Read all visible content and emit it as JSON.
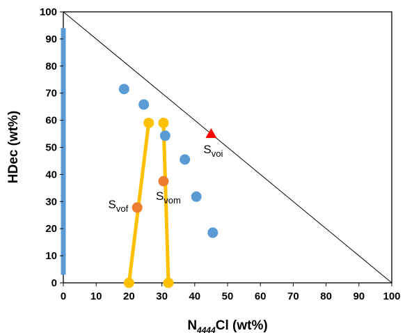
{
  "chart_data": {
    "type": "scatter",
    "x_label": {
      "main": "N",
      "sub": "4444",
      "rest": "Cl (wt%)"
    },
    "y_label": "HDec (wt%)",
    "xlim": [
      0,
      100
    ],
    "ylim": [
      0,
      100
    ],
    "x_ticks": [
      "0",
      "10",
      "20",
      "30",
      "40",
      "50",
      "60",
      "70",
      "80",
      "90",
      "100"
    ],
    "y_ticks": [
      "0",
      "10",
      "20",
      "30",
      "40",
      "50",
      "60",
      "70",
      "80",
      "90",
      "100"
    ],
    "grid": false,
    "colors": {
      "binodal": "#5B9BD5",
      "tie_line": "#FFC000",
      "mixture": "#ED7D31",
      "saturation_point": "#FF0000",
      "diagonal": "#000000"
    },
    "binodal_axis_segment": {
      "x": 0,
      "y_from": 3,
      "y_to": 94
    },
    "binodal_points": [
      {
        "x": 18.5,
        "y": 71.5
      },
      {
        "x": 24.5,
        "y": 65.8
      },
      {
        "x": 31,
        "y": 54.3
      },
      {
        "x": 37,
        "y": 45.5
      },
      {
        "x": 40.5,
        "y": 31.8
      },
      {
        "x": 45.5,
        "y": 18.5
      }
    ],
    "tie_lines": [
      {
        "x": [
          20,
          26
        ],
        "y": [
          0,
          59
        ]
      },
      {
        "x": [
          32,
          30.5
        ],
        "y": [
          0,
          59
        ]
      }
    ],
    "mixture_points": [
      {
        "x": 22.5,
        "y": 27.8,
        "label": "S",
        "sub": "vof"
      },
      {
        "x": 30.5,
        "y": 37.5,
        "label": "S",
        "sub": "vom"
      }
    ],
    "saturation_point": {
      "x": 45,
      "y": 55,
      "label": "S",
      "sub": "voi"
    },
    "diagonal": {
      "x": [
        0,
        100
      ],
      "y": [
        100,
        0
      ]
    }
  }
}
